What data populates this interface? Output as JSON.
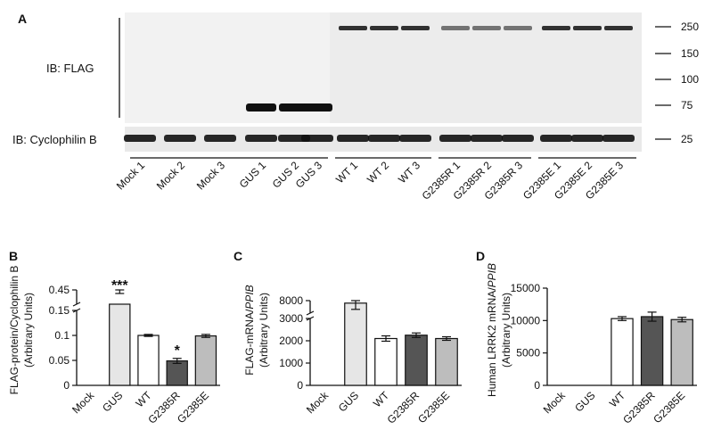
{
  "panel_a": {
    "letter": "A",
    "ib_flag_label": "IB: FLAG",
    "ib_cyclophilin_label": "IB: Cyclophilin B",
    "mw_markers": [
      "250",
      "150",
      "100",
      "75",
      "25"
    ],
    "lanes": [
      "Mock 1",
      "Mock 2",
      "Mock 3",
      "GUS 1",
      "GUS 2",
      "GUS 3",
      "WT 1",
      "WT 2",
      "WT 3",
      "G2385R 1",
      "G2385R 2",
      "G2385R 3",
      "G2385E 1",
      "G2385E 2",
      "G2385E 3"
    ],
    "colors": {
      "band": "#111111",
      "blot_bg": "#ececec"
    }
  },
  "chart_data": [
    {
      "panel": "B",
      "type": "bar",
      "ylabel_line1": "FLAG-protein/Cyclophilin B",
      "ylabel_line2": "(Arbitrary Units)",
      "categories": [
        "Mock",
        "GUS",
        "WT",
        "G2385R",
        "G2385E"
      ],
      "values": [
        0,
        0.43,
        0.1,
        0.049,
        0.099
      ],
      "errors": [
        0,
        0.015,
        0.002,
        0.005,
        0.003
      ],
      "yticks": [
        "0",
        "0.05",
        "0.1",
        "0.15",
        "0.45"
      ],
      "ylim": [
        0,
        0.45
      ],
      "axis_break": true,
      "fills": [
        "#ffffff",
        "#e6e6e6",
        "#ffffff",
        "#555555",
        "#bdbdbd"
      ],
      "significance": [
        "",
        "***",
        "",
        "*",
        ""
      ]
    },
    {
      "panel": "C",
      "type": "bar",
      "ylabel_line1": "FLAG-mRNA/",
      "ylabel_italic": "PPIB",
      "ylabel_line2": "(Arbitrary Units)",
      "categories": [
        "Mock",
        "GUS",
        "WT",
        "G2385R",
        "G2385E"
      ],
      "values": [
        0,
        7800,
        2100,
        2250,
        2100
      ],
      "errors": [
        0,
        500,
        120,
        100,
        80
      ],
      "yticks": [
        "0",
        "1000",
        "2000",
        "3000",
        "8000"
      ],
      "ylim": [
        0,
        8000
      ],
      "axis_break": true,
      "fills": [
        "#ffffff",
        "#e6e6e6",
        "#ffffff",
        "#555555",
        "#bdbdbd"
      ]
    },
    {
      "panel": "D",
      "type": "bar",
      "ylabel_line1": "Human LRRK2 mRNA/",
      "ylabel_italic": "PPIB",
      "ylabel_line2": "(Arbitrary Units)",
      "categories": [
        "Mock",
        "GUS",
        "WT",
        "G2385R",
        "G2385E"
      ],
      "values": [
        0,
        0,
        10300,
        10600,
        10150
      ],
      "errors": [
        0,
        0,
        300,
        700,
        350
      ],
      "yticks": [
        "0",
        "5000",
        "10000",
        "15000"
      ],
      "ylim": [
        0,
        15000
      ],
      "axis_break": false,
      "fills": [
        "#ffffff",
        "#e6e6e6",
        "#ffffff",
        "#555555",
        "#bdbdbd"
      ]
    }
  ]
}
